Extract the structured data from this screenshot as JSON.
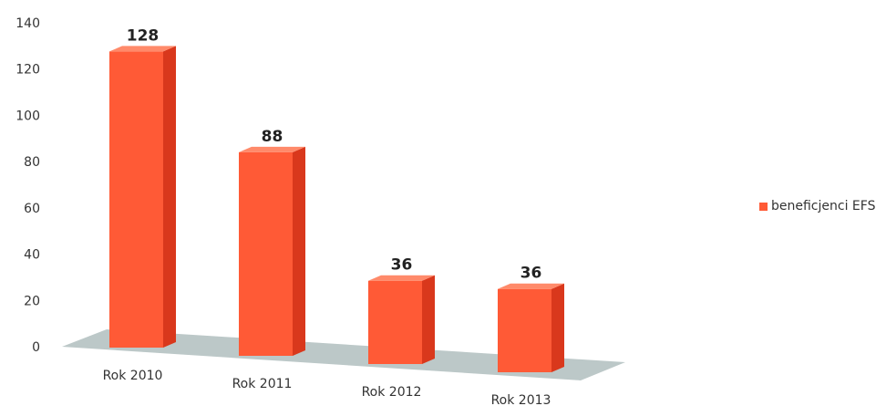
{
  "chart_data": {
    "type": "bar",
    "categories": [
      "Rok 2010",
      "Rok 2011",
      "Rok 2012",
      "Rok 2013"
    ],
    "series": [
      {
        "name": "beneficjenci EFS",
        "values": [
          128,
          88,
          36,
          36
        ],
        "color": "#ff5a36"
      }
    ],
    "data_labels": [
      "128",
      "88",
      "36",
      "36"
    ],
    "y_ticks": [
      "0",
      "20",
      "40",
      "60",
      "80",
      "100",
      "120",
      "140"
    ],
    "ylim": [
      0,
      140
    ],
    "grid": false,
    "legend_position": "right",
    "floor_color": "#bcc8c8",
    "title": "",
    "xlabel": "",
    "ylabel": ""
  }
}
